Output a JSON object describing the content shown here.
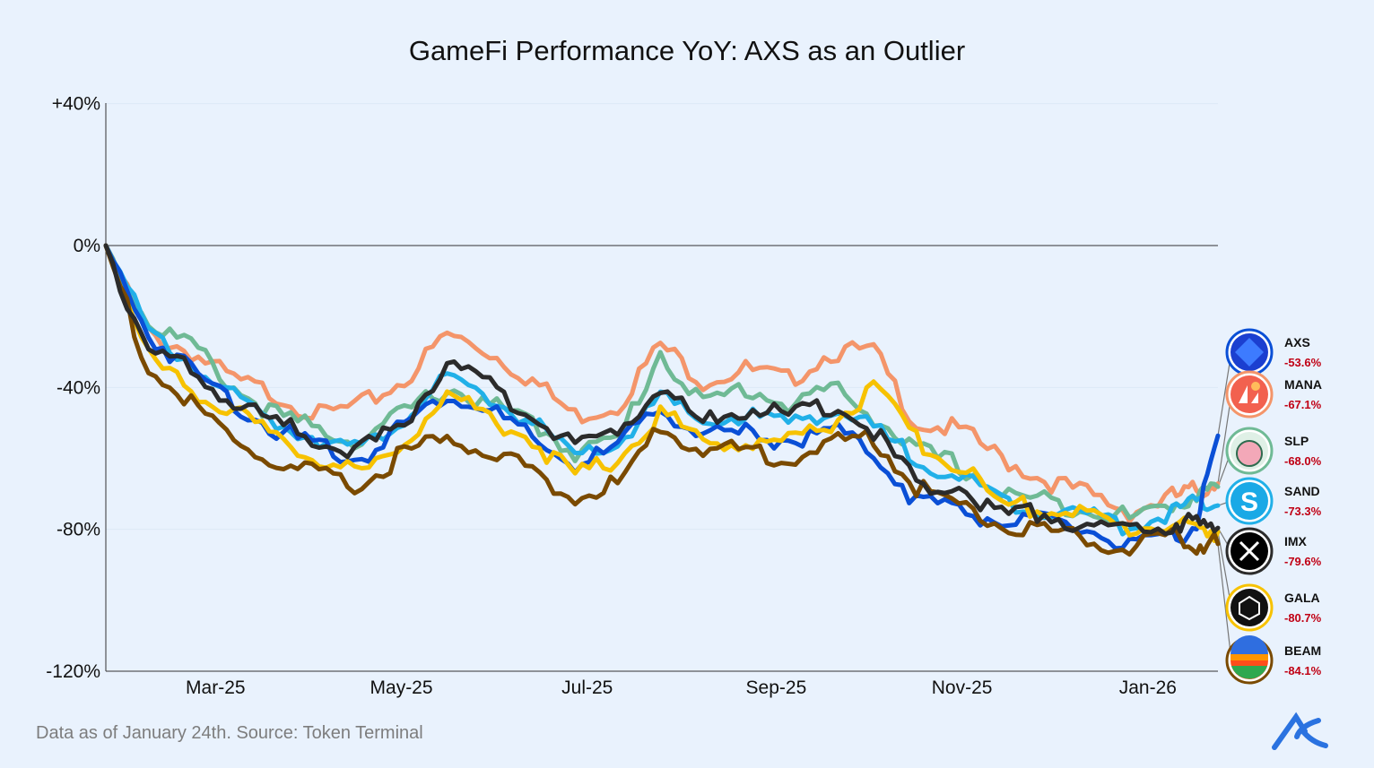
{
  "chart_data": {
    "type": "line",
    "title": "GameFi Performance YoY: AXS as an Outlier",
    "footnote": "Data as of January 24th. Source: Token Terminal",
    "xlabel": "",
    "ylabel": "",
    "ylim": [
      -120,
      40
    ],
    "xlim": [
      "2025-01-24",
      "2026-01-24"
    ],
    "y_ticks": [
      {
        "value": 40,
        "label": "+40%"
      },
      {
        "value": 0,
        "label": "0%"
      },
      {
        "value": -40,
        "label": "-40%"
      },
      {
        "value": -80,
        "label": "-80%"
      },
      {
        "value": -120,
        "label": "-120%"
      }
    ],
    "x_ticks": [
      {
        "date": "2025-03-01",
        "label": "Mar-25"
      },
      {
        "date": "2025-05-01",
        "label": "May-25"
      },
      {
        "date": "2025-07-01",
        "label": "Jul-25"
      },
      {
        "date": "2025-09-01",
        "label": "Sep-25"
      },
      {
        "date": "2025-11-01",
        "label": "Nov-25"
      },
      {
        "date": "2026-01-01",
        "label": "Jan-26"
      }
    ],
    "grid": "horizontal-faint",
    "legend_position": "right",
    "x": [
      "2025-01-24",
      "2025-02-07",
      "2025-02-21",
      "2025-03-07",
      "2025-03-21",
      "2025-04-04",
      "2025-04-18",
      "2025-05-02",
      "2025-05-16",
      "2025-05-30",
      "2025-06-13",
      "2025-06-27",
      "2025-07-11",
      "2025-07-25",
      "2025-08-08",
      "2025-08-22",
      "2025-09-05",
      "2025-09-19",
      "2025-10-03",
      "2025-10-17",
      "2025-10-31",
      "2025-11-14",
      "2025-11-28",
      "2025-12-12",
      "2025-12-26",
      "2026-01-09",
      "2026-01-17",
      "2026-01-24"
    ],
    "series": [
      {
        "name": "MANA",
        "end_label": "-67.1%",
        "color": "#f4956a",
        "values": [
          0,
          -25,
          -30,
          -38,
          -42,
          -48,
          -45,
          -38,
          -25,
          -30,
          -38,
          -48,
          -45,
          -28,
          -38,
          -35,
          -38,
          -30,
          -30,
          -50,
          -52,
          -60,
          -66,
          -70,
          -75,
          -71,
          -69,
          -67.1
        ]
      },
      {
        "name": "SLP",
        "end_label": "-68.0%",
        "color": "#6fba95",
        "values": [
          0,
          -22,
          -28,
          -40,
          -48,
          -52,
          -55,
          -47,
          -40,
          -45,
          -50,
          -58,
          -55,
          -30,
          -45,
          -40,
          -45,
          -40,
          -48,
          -58,
          -62,
          -70,
          -72,
          -74,
          -77,
          -73,
          -70,
          -68.0
        ]
      },
      {
        "name": "SAND",
        "end_label": "-73.3%",
        "color": "#21b0e8",
        "values": [
          0,
          -25,
          -33,
          -43,
          -50,
          -54,
          -58,
          -48,
          -38,
          -43,
          -50,
          -60,
          -56,
          -43,
          -50,
          -48,
          -50,
          -46,
          -52,
          -60,
          -65,
          -72,
          -74,
          -76,
          -79,
          -75,
          -73,
          -73.3
        ]
      },
      {
        "name": "AXS",
        "end_label": "-53.6%",
        "color": "#0a4fd6",
        "values": [
          0,
          -25,
          -35,
          -44,
          -52,
          -57,
          -60,
          -50,
          -42,
          -46,
          -55,
          -62,
          -57,
          -45,
          -54,
          -53,
          -55,
          -52,
          -58,
          -72,
          -74,
          -78,
          -78,
          -80,
          -85,
          -83,
          -78,
          -53.6
        ]
      },
      {
        "name": "GALA",
        "end_label": "-80.7%",
        "color": "#f7c200",
        "values": [
          0,
          -32,
          -40,
          -47,
          -55,
          -60,
          -65,
          -55,
          -42,
          -48,
          -55,
          -65,
          -60,
          -47,
          -55,
          -56,
          -55,
          -50,
          -40,
          -55,
          -62,
          -73,
          -74,
          -76,
          -80,
          -78,
          -80,
          -80.7
        ]
      },
      {
        "name": "BEAM",
        "end_label": "-84.1%",
        "color": "#7a4a00",
        "values": [
          0,
          -35,
          -45,
          -55,
          -62,
          -65,
          -68,
          -58,
          -55,
          -58,
          -63,
          -72,
          -67,
          -52,
          -57,
          -58,
          -60,
          -56,
          -54,
          -68,
          -73,
          -79,
          -80,
          -83,
          -85,
          -83,
          -84,
          -84.1
        ]
      },
      {
        "name": "IMX",
        "end_label": "-79.6%",
        "color": "#2b2b2b",
        "values": [
          0,
          -30,
          -35,
          -45,
          -50,
          -55,
          -58,
          -50,
          -33,
          -40,
          -48,
          -57,
          -52,
          -40,
          -50,
          -46,
          -48,
          -45,
          -52,
          -67,
          -68,
          -76,
          -75,
          -79,
          -81,
          -78,
          -79,
          -79.6
        ]
      }
    ],
    "legend_order": [
      "AXS",
      "MANA",
      "SLP",
      "SAND",
      "IMX",
      "GALA",
      "BEAM"
    ],
    "legend_icons": {
      "AXS": "axie-logo-icon",
      "MANA": "decentraland-logo-icon",
      "SLP": "potion-logo-icon",
      "SAND": "sandbox-logo-icon",
      "IMX": "immutable-x-logo-icon",
      "GALA": "gala-logo-icon",
      "BEAM": "beam-logo-icon"
    },
    "brand_logo": "ak-logo-icon"
  }
}
